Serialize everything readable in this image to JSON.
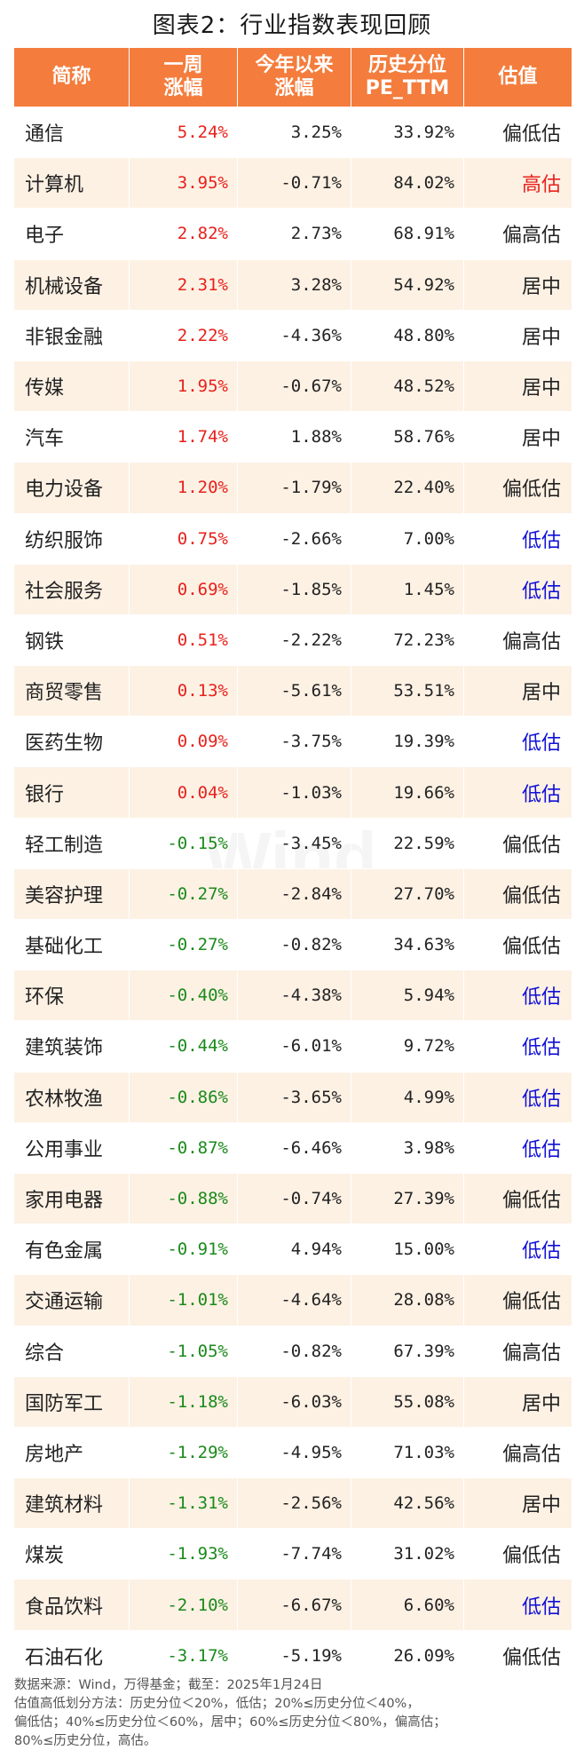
{
  "title": "图表2：行业指数表现回顾",
  "watermark": "Wind",
  "headers": [
    "简称",
    "一周\n涨幅",
    "今年以来\n涨幅",
    "历史分位\nPE_TTM",
    "估值"
  ],
  "rows": [
    {
      "name": "通信",
      "week": "5.24%",
      "ytd": "3.25%",
      "pe": "33.92%",
      "val": "偏低估",
      "week_dir": "pos",
      "val_color": "black"
    },
    {
      "name": "计算机",
      "week": "3.95%",
      "ytd": "-0.71%",
      "pe": "84.02%",
      "val": "高估",
      "week_dir": "pos",
      "val_color": "red"
    },
    {
      "name": "电子",
      "week": "2.82%",
      "ytd": "2.73%",
      "pe": "68.91%",
      "val": "偏高估",
      "week_dir": "pos",
      "val_color": "black"
    },
    {
      "name": "机械设备",
      "week": "2.31%",
      "ytd": "3.28%",
      "pe": "54.92%",
      "val": "居中",
      "week_dir": "pos",
      "val_color": "black"
    },
    {
      "name": "非银金融",
      "week": "2.22%",
      "ytd": "-4.36%",
      "pe": "48.80%",
      "val": "居中",
      "week_dir": "pos",
      "val_color": "black"
    },
    {
      "name": "传媒",
      "week": "1.95%",
      "ytd": "-0.67%",
      "pe": "48.52%",
      "val": "居中",
      "week_dir": "pos",
      "val_color": "black"
    },
    {
      "name": "汽车",
      "week": "1.74%",
      "ytd": "1.88%",
      "pe": "58.76%",
      "val": "居中",
      "week_dir": "pos",
      "val_color": "black"
    },
    {
      "name": "电力设备",
      "week": "1.20%",
      "ytd": "-1.79%",
      "pe": "22.40%",
      "val": "偏低估",
      "week_dir": "pos",
      "val_color": "black"
    },
    {
      "name": "纺织服饰",
      "week": "0.75%",
      "ytd": "-2.66%",
      "pe": "7.00%",
      "val": "低估",
      "week_dir": "pos",
      "val_color": "blue"
    },
    {
      "name": "社会服务",
      "week": "0.69%",
      "ytd": "-1.85%",
      "pe": "1.45%",
      "val": "低估",
      "week_dir": "pos",
      "val_color": "blue"
    },
    {
      "name": "钢铁",
      "week": "0.51%",
      "ytd": "-2.22%",
      "pe": "72.23%",
      "val": "偏高估",
      "week_dir": "pos",
      "val_color": "black"
    },
    {
      "name": "商贸零售",
      "week": "0.13%",
      "ytd": "-5.61%",
      "pe": "53.51%",
      "val": "居中",
      "week_dir": "pos",
      "val_color": "black"
    },
    {
      "name": "医药生物",
      "week": "0.09%",
      "ytd": "-3.75%",
      "pe": "19.39%",
      "val": "低估",
      "week_dir": "pos",
      "val_color": "blue"
    },
    {
      "name": "银行",
      "week": "0.04%",
      "ytd": "-1.03%",
      "pe": "19.66%",
      "val": "低估",
      "week_dir": "pos",
      "val_color": "blue"
    },
    {
      "name": "轻工制造",
      "week": "-0.15%",
      "ytd": "-3.45%",
      "pe": "22.59%",
      "val": "偏低估",
      "week_dir": "neg",
      "val_color": "black"
    },
    {
      "name": "美容护理",
      "week": "-0.27%",
      "ytd": "-2.84%",
      "pe": "27.70%",
      "val": "偏低估",
      "week_dir": "neg",
      "val_color": "black"
    },
    {
      "name": "基础化工",
      "week": "-0.27%",
      "ytd": "-0.82%",
      "pe": "34.63%",
      "val": "偏低估",
      "week_dir": "neg",
      "val_color": "black"
    },
    {
      "name": "环保",
      "week": "-0.40%",
      "ytd": "-4.38%",
      "pe": "5.94%",
      "val": "低估",
      "week_dir": "neg",
      "val_color": "blue"
    },
    {
      "name": "建筑装饰",
      "week": "-0.44%",
      "ytd": "-6.01%",
      "pe": "9.72%",
      "val": "低估",
      "week_dir": "neg",
      "val_color": "blue"
    },
    {
      "name": "农林牧渔",
      "week": "-0.86%",
      "ytd": "-3.65%",
      "pe": "4.99%",
      "val": "低估",
      "week_dir": "neg",
      "val_color": "blue"
    },
    {
      "name": "公用事业",
      "week": "-0.87%",
      "ytd": "-6.46%",
      "pe": "3.98%",
      "val": "低估",
      "week_dir": "neg",
      "val_color": "blue"
    },
    {
      "name": "家用电器",
      "week": "-0.88%",
      "ytd": "-0.74%",
      "pe": "27.39%",
      "val": "偏低估",
      "week_dir": "neg",
      "val_color": "black"
    },
    {
      "name": "有色金属",
      "week": "-0.91%",
      "ytd": "4.94%",
      "pe": "15.00%",
      "val": "低估",
      "week_dir": "neg",
      "val_color": "blue"
    },
    {
      "name": "交通运输",
      "week": "-1.01%",
      "ytd": "-4.64%",
      "pe": "28.08%",
      "val": "偏低估",
      "week_dir": "neg",
      "val_color": "black"
    },
    {
      "name": "综合",
      "week": "-1.05%",
      "ytd": "-0.82%",
      "pe": "67.39%",
      "val": "偏高估",
      "week_dir": "neg",
      "val_color": "black"
    },
    {
      "name": "国防军工",
      "week": "-1.18%",
      "ytd": "-6.03%",
      "pe": "55.08%",
      "val": "居中",
      "week_dir": "neg",
      "val_color": "black"
    },
    {
      "name": "房地产",
      "week": "-1.29%",
      "ytd": "-4.95%",
      "pe": "71.03%",
      "val": "偏高估",
      "week_dir": "neg",
      "val_color": "black"
    },
    {
      "name": "建筑材料",
      "week": "-1.31%",
      "ytd": "-2.56%",
      "pe": "42.56%",
      "val": "居中",
      "week_dir": "neg",
      "val_color": "black"
    },
    {
      "name": "煤炭",
      "week": "-1.93%",
      "ytd": "-7.74%",
      "pe": "31.02%",
      "val": "偏低估",
      "week_dir": "neg",
      "val_color": "black"
    },
    {
      "name": "食品饮料",
      "week": "-2.10%",
      "ytd": "-6.67%",
      "pe": "6.60%",
      "val": "低估",
      "week_dir": "neg",
      "val_color": "blue"
    },
    {
      "name": "石油石化",
      "week": "-3.17%",
      "ytd": "-5.19%",
      "pe": "26.09%",
      "val": "偏低估",
      "week_dir": "neg",
      "val_color": "black"
    }
  ],
  "footnote": "数据来源：Wind，万得基金；截至：2025年1月24日\n估值高低划分方法：历史分位＜20%，低估；20%≤历史分位＜40%，\n偏低估；40%≤历史分位＜60%，居中；60%≤历史分位＜80%，偏高估；\n80%≤历史分位，高估。",
  "colors": {
    "header_bg": "#f47c3c",
    "stripe": "#fdf1e4",
    "up": "#e8211b",
    "down": "#1a8a1a",
    "low": "#1010d8"
  }
}
